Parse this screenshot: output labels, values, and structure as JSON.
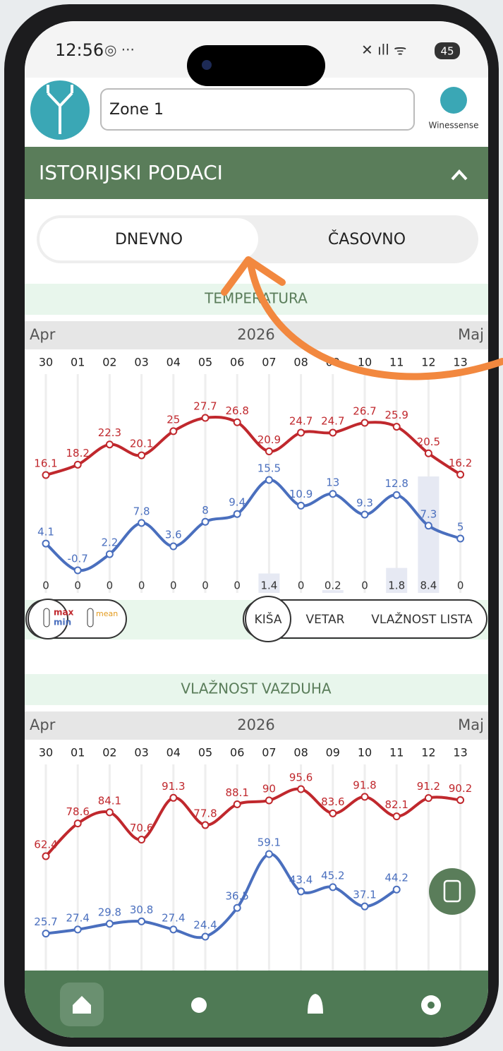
{
  "status_bar": {
    "time": "12:56",
    "battery": "45"
  },
  "header": {
    "zone": "Zone 1",
    "brand": "Winessense"
  },
  "section": {
    "title": "ISTORIJSKI PODACI"
  },
  "tabs": [
    "DNEVNO",
    "ČASOVNO"
  ],
  "chart_data": [
    {
      "type": "line",
      "title": "TEMPERATURA",
      "month_start": "Apr",
      "year": "2026",
      "month_end": "Maj",
      "categories": [
        "30",
        "01",
        "02",
        "03",
        "04",
        "05",
        "06",
        "07",
        "08",
        "09",
        "10",
        "11",
        "12",
        "13"
      ],
      "series": [
        {
          "name": "max",
          "color": "#c0282d",
          "values": [
            16.1,
            18.2,
            22.3,
            20.1,
            25,
            27.7,
            26.8,
            20.9,
            24.7,
            24.7,
            26.7,
            25.9,
            20.5,
            16.2
          ]
        },
        {
          "name": "min",
          "color": "#4a6fbe",
          "values": [
            4.1,
            -0.7,
            2.2,
            7.8,
            3.6,
            8,
            9.4,
            15.5,
            10.9,
            13,
            9.3,
            12.8,
            7.3,
            5
          ]
        },
        {
          "name": "KIŠA",
          "color": "#e6e9f3",
          "values": [
            0,
            0,
            0,
            0,
            0,
            0,
            0,
            1.4,
            0,
            0.2,
            0,
            1.8,
            8.4,
            0
          ]
        }
      ],
      "legend_extra": "mean",
      "toggles": [
        "VETAR",
        "VLAŽNOST LISTA"
      ]
    },
    {
      "type": "line",
      "title": "VLAŽNOST VAZDUHA",
      "month_start": "Apr",
      "year": "2026",
      "month_end": "Maj",
      "categories": [
        "30",
        "01",
        "02",
        "03",
        "04",
        "05",
        "06",
        "07",
        "08",
        "09",
        "10",
        "11",
        "12",
        "13"
      ],
      "series": [
        {
          "color": "#c0282d",
          "values": [
            62.4,
            78.6,
            84.1,
            70.6,
            91.3,
            77.8,
            88.1,
            90,
            95.6,
            83.6,
            91.8,
            82.1,
            91.2,
            90.2
          ]
        },
        {
          "color": "#4a6fbe",
          "values": [
            25.7,
            27.4,
            29.8,
            30.8,
            27.4,
            24.4,
            36.5,
            59.1,
            43.4,
            45.2,
            37.1,
            44.2,
            null,
            null
          ]
        }
      ]
    }
  ]
}
